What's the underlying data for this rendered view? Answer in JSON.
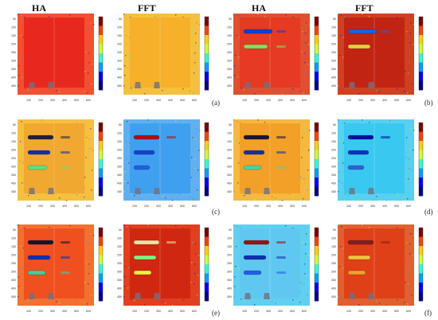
{
  "headers": [
    "HA",
    "FFT",
    "HA",
    "FFT"
  ],
  "captions": [
    "(a)",
    "(b)",
    "(c)",
    "(d)",
    "(e)",
    "(f)"
  ],
  "axis": {
    "x_ticks": [
      "100",
      "200",
      "300",
      "400",
      "500",
      "600"
    ],
    "y_ticks": [
      "50",
      "100",
      "150",
      "200",
      "250",
      "300",
      "350",
      "400",
      "450"
    ]
  },
  "colormap": [
    "#00008f",
    "#0000ff",
    "#00a0ff",
    "#30ffcf",
    "#cfff30",
    "#ffd000",
    "#ff4000",
    "#800000"
  ],
  "panels": [
    {
      "id": "a-ha",
      "bg": "#e8281e",
      "border": "#f25030",
      "bars": []
    },
    {
      "id": "a-fft",
      "bg": "#f6b02a",
      "border": "#f5c040",
      "bars": []
    },
    {
      "id": "b-ha",
      "bg": "#e63a22",
      "border": "#e05030",
      "bars": [
        {
          "c": "#1040d0",
          "w": 36
        },
        {
          "c": "#80e060",
          "w": 30
        }
      ]
    },
    {
      "id": "b-fft",
      "bg": "#c22414",
      "border": "#d04020",
      "bars": [
        {
          "c": "#2060e0",
          "w": 36
        },
        {
          "c": "#e0d040",
          "w": 28
        }
      ]
    },
    {
      "id": "c-ha",
      "bg": "#f0a830",
      "border": "#f5c040",
      "bars": [
        {
          "c": "#202040",
          "w": 32
        },
        {
          "c": "#1030b0",
          "w": 28
        },
        {
          "c": "#60e080",
          "w": 24
        }
      ]
    },
    {
      "id": "c-fft",
      "bg": "#40a0f0",
      "border": "#60b0f0",
      "bars": [
        {
          "c": "#b01010",
          "w": 32
        },
        {
          "c": "#1840d0",
          "w": 26
        },
        {
          "c": "#2060e0",
          "w": 20
        }
      ]
    },
    {
      "id": "d-ha",
      "bg": "#f2a028",
      "border": "#f5b840",
      "bars": [
        {
          "c": "#181838",
          "w": 32
        },
        {
          "c": "#1030b0",
          "w": 26
        },
        {
          "c": "#50d0a0",
          "w": 22
        }
      ]
    },
    {
      "id": "d-fft",
      "bg": "#38c8f0",
      "border": "#58d0f0",
      "bars": [
        {
          "c": "#0010a0",
          "w": 32
        },
        {
          "c": "#1030c0",
          "w": 26
        },
        {
          "c": "#3060d8",
          "w": 20
        }
      ]
    },
    {
      "id": "e-ha",
      "bg": "#f05020",
      "border": "#f27030",
      "bars": [
        {
          "c": "#101830",
          "w": 32
        },
        {
          "c": "#1030b0",
          "w": 28
        },
        {
          "c": "#40d0a0",
          "w": 22
        }
      ]
    },
    {
      "id": "e-fft",
      "bg": "#d02810",
      "border": "#e04020",
      "bars": [
        {
          "c": "#f0e0a0",
          "w": 32
        },
        {
          "c": "#80f080",
          "w": 28
        },
        {
          "c": "#f0f040",
          "w": 22
        }
      ]
    },
    {
      "id": "f-ha",
      "bg": "#60c8f0",
      "border": "#60d0f0",
      "bars": [
        {
          "c": "#a01010",
          "w": 32
        },
        {
          "c": "#1030b0",
          "w": 28
        },
        {
          "c": "#2060e0",
          "w": 22
        }
      ]
    },
    {
      "id": "f-fft",
      "bg": "#e04018",
      "border": "#e06030",
      "bars": [
        {
          "c": "#802020",
          "w": 32
        },
        {
          "c": "#f0c040",
          "w": 28
        },
        {
          "c": "#f0a030",
          "w": 22
        }
      ]
    }
  ]
}
